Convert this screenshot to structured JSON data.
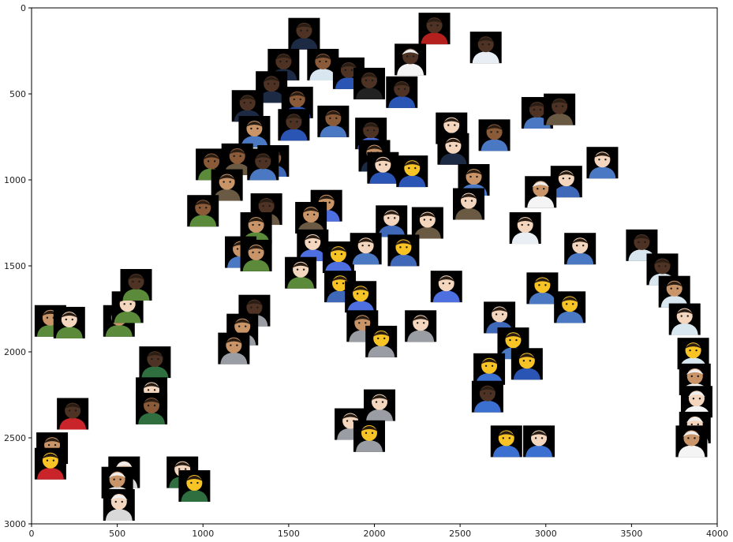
{
  "chart_data": {
    "type": "scatter",
    "title": "",
    "xlabel": "",
    "ylabel": "",
    "xlim": [
      0,
      4000
    ],
    "ylim": [
      3000,
      0
    ],
    "y_inverted": true,
    "x_ticks": [
      0,
      500,
      1000,
      1500,
      2000,
      2500,
      3000,
      3500,
      4000
    ],
    "y_ticks": [
      0,
      500,
      1000,
      1500,
      2000,
      2500,
      3000
    ],
    "grid": false,
    "legend": "none",
    "marker": "emoji-image-thumbnail",
    "series": [
      {
        "points": [
          {
            "x": 2350,
            "y": 120,
            "icon": "guard-emoji",
            "tone": "dark"
          },
          {
            "x": 2650,
            "y": 230,
            "icon": "health-worker-emoji",
            "tone": "dark"
          },
          {
            "x": 2210,
            "y": 300,
            "icon": "cook-emoji",
            "tone": "dark"
          },
          {
            "x": 1590,
            "y": 150,
            "icon": "pilot-emoji",
            "tone": "dark"
          },
          {
            "x": 1470,
            "y": 330,
            "icon": "pilot-emoji",
            "tone": "dark"
          },
          {
            "x": 1700,
            "y": 330,
            "icon": "scientist-emoji",
            "tone": "medium-dark"
          },
          {
            "x": 1850,
            "y": 380,
            "icon": "police-officer-emoji",
            "tone": "dark"
          },
          {
            "x": 1970,
            "y": 440,
            "icon": "graduate-emoji",
            "tone": "dark"
          },
          {
            "x": 2160,
            "y": 490,
            "icon": "police-officer-emoji",
            "tone": "dark"
          },
          {
            "x": 1400,
            "y": 460,
            "icon": "pilot-emoji",
            "tone": "dark"
          },
          {
            "x": 1260,
            "y": 570,
            "icon": "pilot-emoji",
            "tone": "dark"
          },
          {
            "x": 1550,
            "y": 550,
            "icon": "police-officer-emoji",
            "tone": "medium-dark"
          },
          {
            "x": 1530,
            "y": 680,
            "icon": "police-officer-emoji",
            "tone": "dark"
          },
          {
            "x": 1300,
            "y": 720,
            "icon": "office-worker-emoji",
            "tone": "medium"
          },
          {
            "x": 1760,
            "y": 660,
            "icon": "office-worker-emoji",
            "tone": "medium-dark"
          },
          {
            "x": 1980,
            "y": 730,
            "icon": "singer-emoji",
            "tone": "dark"
          },
          {
            "x": 2450,
            "y": 700,
            "icon": "pilot-emoji",
            "tone": "light"
          },
          {
            "x": 2700,
            "y": 740,
            "icon": "office-worker-emoji",
            "tone": "medium-dark"
          },
          {
            "x": 2460,
            "y": 820,
            "icon": "pilot-emoji",
            "tone": "light"
          },
          {
            "x": 2950,
            "y": 610,
            "icon": "office-worker-emoji",
            "tone": "dark"
          },
          {
            "x": 3080,
            "y": 590,
            "icon": "detective-emoji",
            "tone": "dark"
          },
          {
            "x": 3330,
            "y": 900,
            "icon": "office-worker-emoji",
            "tone": "light"
          },
          {
            "x": 3120,
            "y": 1010,
            "icon": "mechanic-emoji",
            "tone": "light"
          },
          {
            "x": 2970,
            "y": 1070,
            "icon": "cook-emoji",
            "tone": "medium"
          },
          {
            "x": 2580,
            "y": 1000,
            "icon": "office-worker-emoji",
            "tone": "medium"
          },
          {
            "x": 2550,
            "y": 1140,
            "icon": "detective-emoji",
            "tone": "light"
          },
          {
            "x": 1050,
            "y": 910,
            "icon": "farmer-emoji",
            "tone": "medium-dark"
          },
          {
            "x": 1200,
            "y": 880,
            "icon": "detective-emoji",
            "tone": "medium-dark"
          },
          {
            "x": 1410,
            "y": 890,
            "icon": "mechanic-emoji",
            "tone": "medium-dark"
          },
          {
            "x": 1350,
            "y": 910,
            "icon": "office-worker-emoji",
            "tone": "dark"
          },
          {
            "x": 2000,
            "y": 860,
            "icon": "pilot-emoji",
            "tone": "medium"
          },
          {
            "x": 2050,
            "y": 930,
            "icon": "police-officer-emoji",
            "tone": "light"
          },
          {
            "x": 2220,
            "y": 950,
            "icon": "police-officer-emoji",
            "tone": "yellow"
          },
          {
            "x": 1140,
            "y": 1030,
            "icon": "detective-emoji",
            "tone": "medium"
          },
          {
            "x": 1000,
            "y": 1180,
            "icon": "farmer-emoji",
            "tone": "medium-dark"
          },
          {
            "x": 1370,
            "y": 1170,
            "icon": "detective-emoji",
            "tone": "dark"
          },
          {
            "x": 1720,
            "y": 1150,
            "icon": "singer-emoji",
            "tone": "medium"
          },
          {
            "x": 1630,
            "y": 1220,
            "icon": "detective-emoji",
            "tone": "medium"
          },
          {
            "x": 1310,
            "y": 1280,
            "icon": "farmer-emoji",
            "tone": "medium"
          },
          {
            "x": 2100,
            "y": 1240,
            "icon": "mechanic-emoji",
            "tone": "light"
          },
          {
            "x": 2310,
            "y": 1250,
            "icon": "detective-emoji",
            "tone": "light"
          },
          {
            "x": 2880,
            "y": 1280,
            "icon": "health-worker-emoji",
            "tone": "light"
          },
          {
            "x": 1220,
            "y": 1420,
            "icon": "office-worker-emoji",
            "tone": "medium"
          },
          {
            "x": 1310,
            "y": 1440,
            "icon": "farmer-emoji",
            "tone": "medium"
          },
          {
            "x": 1640,
            "y": 1380,
            "icon": "singer-emoji",
            "tone": "light"
          },
          {
            "x": 1790,
            "y": 1450,
            "icon": "singer-emoji",
            "tone": "yellow"
          },
          {
            "x": 1950,
            "y": 1400,
            "icon": "office-worker-emoji",
            "tone": "light"
          },
          {
            "x": 2170,
            "y": 1410,
            "icon": "mechanic-emoji",
            "tone": "yellow"
          },
          {
            "x": 3200,
            "y": 1400,
            "icon": "office-worker-emoji",
            "tone": "light"
          },
          {
            "x": 1570,
            "y": 1540,
            "icon": "farmer-emoji",
            "tone": "light"
          },
          {
            "x": 1800,
            "y": 1620,
            "icon": "mechanic-emoji",
            "tone": "yellow"
          },
          {
            "x": 1920,
            "y": 1680,
            "icon": "singer-emoji",
            "tone": "yellow"
          },
          {
            "x": 2420,
            "y": 1620,
            "icon": "singer-emoji",
            "tone": "light"
          },
          {
            "x": 2980,
            "y": 1630,
            "icon": "office-worker-emoji",
            "tone": "yellow"
          },
          {
            "x": 3140,
            "y": 1740,
            "icon": "office-worker-emoji",
            "tone": "yellow"
          },
          {
            "x": 2730,
            "y": 1800,
            "icon": "mechanic-emoji",
            "tone": "light"
          },
          {
            "x": 3560,
            "y": 1380,
            "icon": "scientist-emoji",
            "tone": "dark"
          },
          {
            "x": 3680,
            "y": 1520,
            "icon": "scientist-emoji",
            "tone": "dark"
          },
          {
            "x": 3750,
            "y": 1650,
            "icon": "scientist-emoji",
            "tone": "medium"
          },
          {
            "x": 3810,
            "y": 1810,
            "icon": "scientist-emoji",
            "tone": "light"
          },
          {
            "x": 3860,
            "y": 2010,
            "icon": "scientist-emoji",
            "tone": "yellow"
          },
          {
            "x": 3870,
            "y": 2160,
            "icon": "cook-emoji",
            "tone": "medium"
          },
          {
            "x": 3880,
            "y": 2290,
            "icon": "cook-emoji",
            "tone": "light"
          },
          {
            "x": 3870,
            "y": 2440,
            "icon": "cook-emoji",
            "tone": "light"
          },
          {
            "x": 3850,
            "y": 2520,
            "icon": "cook-emoji",
            "tone": "medium"
          },
          {
            "x": 2810,
            "y": 1950,
            "icon": "office-worker-emoji",
            "tone": "yellow"
          },
          {
            "x": 2890,
            "y": 2070,
            "icon": "police-officer-emoji",
            "tone": "yellow"
          },
          {
            "x": 2670,
            "y": 2100,
            "icon": "construction-worker-emoji",
            "tone": "yellow"
          },
          {
            "x": 2660,
            "y": 2260,
            "icon": "construction-worker-emoji",
            "tone": "dark"
          },
          {
            "x": 2770,
            "y": 2520,
            "icon": "construction-worker-emoji",
            "tone": "yellow"
          },
          {
            "x": 2960,
            "y": 2520,
            "icon": "construction-worker-emoji",
            "tone": "light"
          },
          {
            "x": 1300,
            "y": 1760,
            "icon": "technologist-emoji",
            "tone": "dark"
          },
          {
            "x": 1230,
            "y": 1870,
            "icon": "technologist-emoji",
            "tone": "medium"
          },
          {
            "x": 1180,
            "y": 1980,
            "icon": "technologist-emoji",
            "tone": "medium"
          },
          {
            "x": 1930,
            "y": 1850,
            "icon": "technologist-emoji",
            "tone": "medium"
          },
          {
            "x": 2040,
            "y": 1940,
            "icon": "technologist-emoji",
            "tone": "yellow"
          },
          {
            "x": 2270,
            "y": 1850,
            "icon": "technologist-emoji",
            "tone": "light"
          },
          {
            "x": 2030,
            "y": 2310,
            "icon": "technologist-emoji",
            "tone": "light"
          },
          {
            "x": 1860,
            "y": 2420,
            "icon": "technologist-emoji",
            "tone": "light"
          },
          {
            "x": 1970,
            "y": 2490,
            "icon": "technologist-emoji",
            "tone": "yellow"
          },
          {
            "x": 110,
            "y": 1820,
            "icon": "farmer-emoji",
            "tone": "medium"
          },
          {
            "x": 220,
            "y": 1830,
            "icon": "farmer-emoji",
            "tone": "light"
          },
          {
            "x": 510,
            "y": 1820,
            "icon": "farmer-emoji",
            "tone": "medium"
          },
          {
            "x": 560,
            "y": 1740,
            "icon": "farmer-emoji",
            "tone": "light"
          },
          {
            "x": 610,
            "y": 1610,
            "icon": "farmer-emoji",
            "tone": "dark"
          },
          {
            "x": 720,
            "y": 2060,
            "icon": "teacher-emoji",
            "tone": "dark"
          },
          {
            "x": 700,
            "y": 2240,
            "icon": "teacher-emoji",
            "tone": "light"
          },
          {
            "x": 700,
            "y": 2330,
            "icon": "teacher-emoji",
            "tone": "medium-dark"
          },
          {
            "x": 880,
            "y": 2700,
            "icon": "teacher-emoji",
            "tone": "light"
          },
          {
            "x": 950,
            "y": 2780,
            "icon": "teacher-emoji",
            "tone": "yellow"
          },
          {
            "x": 240,
            "y": 2360,
            "icon": "firefighter-emoji",
            "tone": "dark"
          },
          {
            "x": 120,
            "y": 2560,
            "icon": "firefighter-emoji",
            "tone": "medium"
          },
          {
            "x": 110,
            "y": 2650,
            "icon": "firefighter-emoji",
            "tone": "yellow"
          },
          {
            "x": 540,
            "y": 2700,
            "icon": "astronaut-emoji",
            "tone": "light"
          },
          {
            "x": 500,
            "y": 2760,
            "icon": "astronaut-emoji",
            "tone": "medium"
          },
          {
            "x": 510,
            "y": 2890,
            "icon": "astronaut-emoji",
            "tone": "light"
          }
        ]
      }
    ],
    "tone_colors": {
      "yellow": "#f7c325",
      "light": "#f3d6bd",
      "medium": "#c99568",
      "medium-dark": "#8a5a39",
      "dark": "#4e3325"
    },
    "icon_colors": {
      "guard-emoji": "#b3201d",
      "health-worker-emoji": "#e8eef4",
      "cook-emoji": "#f4f4f4",
      "pilot-emoji": "#1c2a44",
      "scientist-emoji": "#d8e6ef",
      "police-officer-emoji": "#2b55b5",
      "graduate-emoji": "#222222",
      "office-worker-emoji": "#4a78c2",
      "singer-emoji": "#4d6fe0",
      "detective-emoji": "#6b5a43",
      "mechanic-emoji": "#3f68b8",
      "farmer-emoji": "#5a8a3a",
      "technologist-emoji": "#9a9ea4",
      "construction-worker-emoji": "#3b6fd0",
      "teacher-emoji": "#2f6e3e",
      "firefighter-emoji": "#c8242a",
      "astronaut-emoji": "#d9d9d9"
    }
  }
}
